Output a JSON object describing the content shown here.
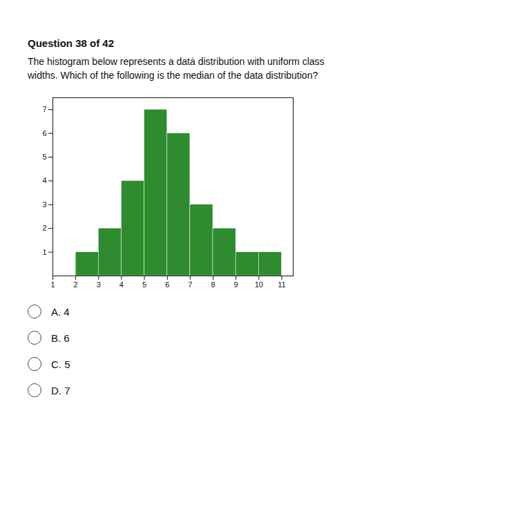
{
  "chart_data": {
    "type": "histogram",
    "title": "Question 38 of 42",
    "subtitle": [
      "The histogram below represents a datȧ distribution with uniform class",
      "widths. Which of the following is the median of the data distribution?"
    ],
    "bins": [
      2,
      3,
      4,
      5,
      6,
      7,
      8,
      9,
      10,
      11
    ],
    "values": [
      1,
      2,
      4,
      7,
      6,
      3,
      2,
      1,
      1
    ],
    "color": "#2e8b2e",
    "xlim": [
      1,
      11.5
    ],
    "xticks": [
      1,
      2,
      3,
      4,
      5,
      6,
      7,
      8,
      9,
      10,
      11
    ],
    "ylim": [
      0,
      7.5
    ],
    "yticks": [
      1,
      2,
      3,
      4,
      5,
      6,
      7
    ],
    "grid": false,
    "annotations": [
      "A. 4",
      "B. 6",
      "C. 5",
      "D. 7"
    ]
  }
}
